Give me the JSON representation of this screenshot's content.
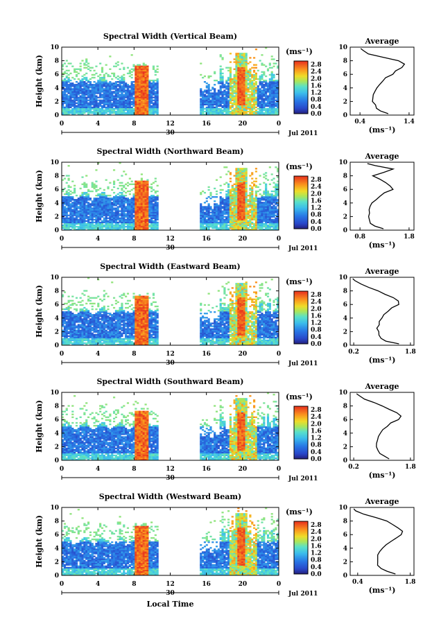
{
  "figure": {
    "xlabel": "Local Time",
    "date_label": "Jul 2011",
    "day_label": "30",
    "colorbar_unit": "(ms⁻¹)",
    "avg_title": "Average",
    "avg_xlabel": "(ms⁻¹)"
  },
  "chart_data": [
    {
      "type": "heatmap",
      "title": "Spectral Width (Vertical Beam)",
      "ylabel": "Height (km)",
      "x_ticks": [
        "0",
        "4",
        "8",
        "12",
        "16",
        "20",
        "0"
      ],
      "x_range_hours": [
        0,
        24
      ],
      "y_ticks": [
        "0",
        "2",
        "4",
        "6",
        "8",
        "10"
      ],
      "y_range_km": [
        0,
        10
      ],
      "colorbar_ticks": [
        "0.0",
        "0.4",
        "0.8",
        "1.2",
        "1.6",
        "2.0",
        "2.4",
        "2.8"
      ],
      "colorbar_range": [
        0,
        3.0
      ],
      "gap_hours": [
        10.6,
        15.2
      ],
      "avg_profile": {
        "xticks": [
          "0.4",
          "1.4"
        ],
        "xlim": [
          0.2,
          1.5
        ],
        "height_km": [
          0.2,
          0.6,
          1.0,
          1.5,
          2.0,
          2.5,
          3.0,
          3.5,
          4.0,
          4.5,
          5.0,
          5.5,
          6.0,
          6.5,
          7.0,
          7.5,
          8.0,
          8.5,
          9.0,
          9.5,
          9.8
        ],
        "width": [
          0.95,
          0.8,
          0.72,
          0.7,
          0.68,
          0.68,
          0.69,
          0.71,
          0.75,
          0.82,
          0.88,
          0.95,
          1.05,
          1.15,
          1.25,
          1.3,
          1.2,
          0.9,
          0.6,
          0.45,
          0.4
        ]
      }
    },
    {
      "type": "heatmap",
      "title": "Spectral Width (Northward Beam)",
      "ylabel": "Height (km)",
      "x_ticks": [
        "0",
        "4",
        "8",
        "12",
        "16",
        "20",
        "0"
      ],
      "x_range_hours": [
        0,
        24
      ],
      "y_ticks": [
        "0",
        "2",
        "4",
        "6",
        "8",
        "10"
      ],
      "y_range_km": [
        0,
        10
      ],
      "colorbar_ticks": [
        "0.0",
        "0.4",
        "0.8",
        "1.2",
        "1.6",
        "2.0",
        "2.4",
        "2.8"
      ],
      "colorbar_range": [
        0,
        3.0
      ],
      "gap_hours": [
        10.6,
        15.2
      ],
      "avg_profile": {
        "xticks": [
          "0.8",
          "1.8"
        ],
        "xlim": [
          0.6,
          1.9
        ],
        "height_km": [
          0.2,
          0.6,
          1.0,
          1.5,
          2.0,
          2.5,
          3.0,
          3.5,
          4.0,
          4.5,
          5.0,
          5.5,
          6.0,
          6.5,
          7.0,
          7.5,
          8.0,
          8.5,
          9.0,
          9.5,
          9.8
        ],
        "width": [
          1.3,
          1.1,
          1.0,
          0.98,
          0.97,
          0.98,
          1.0,
          1.02,
          1.06,
          1.12,
          1.2,
          1.3,
          1.45,
          1.4,
          1.3,
          1.2,
          1.05,
          1.3,
          1.5,
          1.1,
          0.95
        ]
      }
    },
    {
      "type": "heatmap",
      "title": "Spectral Width (Eastward Beam)",
      "ylabel": "Height (km)",
      "x_ticks": [
        "0",
        "4",
        "8",
        "12",
        "16",
        "20",
        "0"
      ],
      "x_range_hours": [
        0,
        24
      ],
      "y_ticks": [
        "0",
        "2",
        "4",
        "6",
        "8",
        "10"
      ],
      "y_range_km": [
        0,
        10
      ],
      "colorbar_ticks": [
        "0.0",
        "0.4",
        "0.8",
        "1.2",
        "1.6",
        "2.0",
        "2.4",
        "2.8"
      ],
      "colorbar_range": [
        0,
        3.0
      ],
      "gap_hours": [
        10.6,
        15.2
      ],
      "avg_profile": {
        "xticks": [
          "0.2",
          "1.8"
        ],
        "xlim": [
          0.1,
          1.9
        ],
        "height_km": [
          0.2,
          0.6,
          1.0,
          1.5,
          2.0,
          2.5,
          3.0,
          3.5,
          4.0,
          4.5,
          5.0,
          5.5,
          6.0,
          6.5,
          7.0,
          7.5,
          8.0,
          8.5,
          9.0,
          9.5,
          9.8
        ],
        "width": [
          1.5,
          1.1,
          0.95,
          0.9,
          0.88,
          0.88,
          0.9,
          0.93,
          0.98,
          1.05,
          1.15,
          1.3,
          1.5,
          1.45,
          1.3,
          1.1,
          0.9,
          0.6,
          0.4,
          0.25,
          0.2
        ]
      }
    },
    {
      "type": "heatmap",
      "title": "Spectral Width (Southward Beam)",
      "ylabel": "Height (km)",
      "x_ticks": [
        "0",
        "4",
        "8",
        "12",
        "16",
        "20",
        "0"
      ],
      "x_range_hours": [
        0,
        24
      ],
      "y_ticks": [
        "0",
        "2",
        "4",
        "6",
        "8",
        "10"
      ],
      "y_range_km": [
        0,
        10
      ],
      "colorbar_ticks": [
        "0.0",
        "0.4",
        "0.8",
        "1.2",
        "1.6",
        "2.0",
        "2.4",
        "2.8"
      ],
      "colorbar_range": [
        0,
        3.0
      ],
      "gap_hours": [
        10.6,
        15.2
      ],
      "avg_profile": {
        "xticks": [
          "0.2",
          "1.8"
        ],
        "xlim": [
          0.1,
          1.9
        ],
        "height_km": [
          0.2,
          0.6,
          1.0,
          1.5,
          2.0,
          2.5,
          3.0,
          3.5,
          4.0,
          4.5,
          5.0,
          5.5,
          6.0,
          6.5,
          7.0,
          7.5,
          8.0,
          8.5,
          9.0,
          9.5,
          9.8
        ],
        "width": [
          1.2,
          1.05,
          0.92,
          0.88,
          0.86,
          0.86,
          0.88,
          0.91,
          0.96,
          1.03,
          1.12,
          1.25,
          1.45,
          1.55,
          1.4,
          1.2,
          1.0,
          0.75,
          0.5,
          0.35,
          0.3
        ]
      }
    },
    {
      "type": "heatmap",
      "title": "Spectral Width (Westward Beam)",
      "ylabel": "Height (km)",
      "x_ticks": [
        "0",
        "4",
        "8",
        "12",
        "16",
        "20",
        "0"
      ],
      "x_range_hours": [
        0,
        24
      ],
      "y_ticks": [
        "0",
        "2",
        "4",
        "6",
        "8",
        "10"
      ],
      "y_range_km": [
        0,
        10
      ],
      "colorbar_ticks": [
        "0.0",
        "0.4",
        "0.8",
        "1.2",
        "1.6",
        "2.0",
        "2.4",
        "2.8"
      ],
      "colorbar_range": [
        0,
        3.0
      ],
      "gap_hours": [
        10.6,
        15.2
      ],
      "avg_profile": {
        "xticks": [
          "0.4",
          "1.8"
        ],
        "xlim": [
          0.2,
          1.9
        ],
        "height_km": [
          0.2,
          0.6,
          1.0,
          1.5,
          2.0,
          2.5,
          3.0,
          3.5,
          4.0,
          4.5,
          5.0,
          5.5,
          6.0,
          6.5,
          7.0,
          7.5,
          8.0,
          8.5,
          9.0,
          9.5,
          9.8
        ],
        "width": [
          1.4,
          1.2,
          1.0,
          0.95,
          0.93,
          0.93,
          0.95,
          0.98,
          1.05,
          1.15,
          1.28,
          1.4,
          1.55,
          1.6,
          1.5,
          1.35,
          1.2,
          0.9,
          0.55,
          0.35,
          0.28
        ]
      }
    }
  ]
}
